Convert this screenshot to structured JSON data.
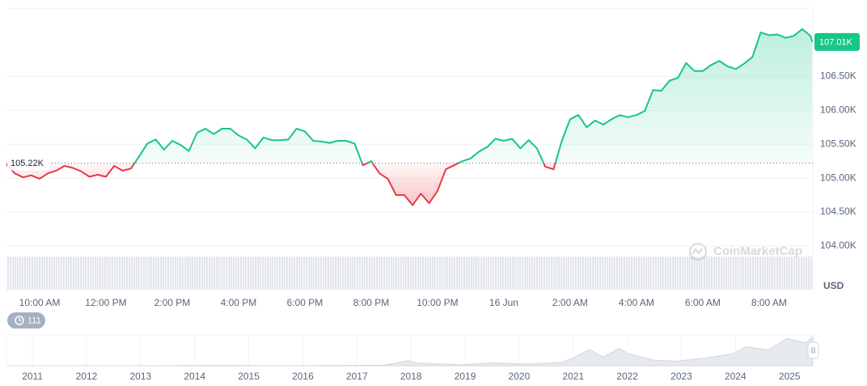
{
  "chart_data": {
    "type": "line",
    "x": [
      9,
      9.25,
      9.5,
      9.75,
      10,
      10.25,
      10.5,
      10.75,
      11,
      11.25,
      11.5,
      11.75,
      12,
      12.25,
      12.5,
      12.75,
      13,
      13.25,
      13.5,
      13.75,
      14,
      14.25,
      14.5,
      14.75,
      15,
      15.25,
      15.5,
      15.75,
      16,
      16.25,
      16.5,
      16.75,
      17,
      17.25,
      17.5,
      17.75,
      18,
      18.25,
      18.5,
      18.75,
      19,
      19.25,
      19.5,
      19.75,
      20,
      20.25,
      20.5,
      20.75,
      21,
      21.25,
      21.5,
      21.75,
      22,
      22.25,
      22.5,
      22.75,
      23,
      23.25,
      23.5,
      23.75,
      24,
      24.25,
      24.5,
      24.75,
      25,
      25.25,
      25.5,
      25.75,
      26,
      26.25,
      26.5,
      26.75,
      27,
      27.25,
      27.5,
      27.75,
      28,
      28.25,
      28.5,
      28.75,
      29,
      29.25,
      29.5,
      29.75,
      30,
      30.25,
      30.5,
      30.75,
      31,
      31.25,
      31.5,
      31.75,
      32,
      32.25,
      32.5,
      32.75,
      33,
      33.25,
      33.3
    ],
    "values": [
      105200,
      105070,
      105010,
      105040,
      104990,
      105070,
      105110,
      105180,
      105150,
      105100,
      105020,
      105050,
      105020,
      105180,
      105110,
      105140,
      105320,
      105510,
      105570,
      105420,
      105550,
      105490,
      105400,
      105670,
      105730,
      105650,
      105730,
      105730,
      105630,
      105570,
      105440,
      105600,
      105560,
      105560,
      105570,
      105730,
      105690,
      105550,
      105540,
      105520,
      105550,
      105550,
      105510,
      105190,
      105250,
      105070,
      104990,
      104750,
      104750,
      104600,
      104770,
      104630,
      104810,
      105130,
      105190,
      105250,
      105290,
      105390,
      105460,
      105580,
      105550,
      105580,
      105440,
      105560,
      105440,
      105170,
      105130,
      105550,
      105870,
      105930,
      105750,
      105850,
      105790,
      105870,
      105930,
      105900,
      105930,
      105990,
      106300,
      106290,
      106440,
      106480,
      106700,
      106580,
      106580,
      106670,
      106730,
      106650,
      106610,
      106690,
      106790,
      107150,
      107110,
      107120,
      107070,
      107100,
      107200,
      107100,
      107010
    ],
    "colors": {
      "above": "#16c784",
      "below": "#ea3943"
    },
    "baseline": {
      "value": 105220,
      "label": "105.22K"
    },
    "last_price": {
      "value": 107010,
      "label": "107.01K"
    },
    "xlim": [
      9.0,
      33.32
    ],
    "ylim": [
      103400,
      107510
    ],
    "xticks": [
      {
        "value": 10,
        "label": "10:00 AM"
      },
      {
        "value": 12,
        "label": "12:00 PM"
      },
      {
        "value": 14,
        "label": "2:00 PM"
      },
      {
        "value": 16,
        "label": "4:00 PM"
      },
      {
        "value": 18,
        "label": "6:00 PM"
      },
      {
        "value": 20,
        "label": "8:00 PM"
      },
      {
        "value": 22,
        "label": "10:00 PM"
      },
      {
        "value": 24,
        "label": "16 Jun"
      },
      {
        "value": 26,
        "label": "2:00 AM"
      },
      {
        "value": 28,
        "label": "4:00 AM"
      },
      {
        "value": 30,
        "label": "6:00 AM"
      },
      {
        "value": 32,
        "label": "8:00 AM"
      }
    ],
    "yticks": [
      {
        "value": 104000,
        "label": "104.00K"
      },
      {
        "value": 104500,
        "label": "104.50K"
      },
      {
        "value": 105000,
        "label": "105.00K"
      },
      {
        "value": 105500,
        "label": "105.50K"
      },
      {
        "value": 106000,
        "label": "106.00K"
      },
      {
        "value": 106500,
        "label": "106.50K"
      }
    ],
    "grid": true,
    "y_axis_unit": "USD",
    "watermark": "CoinMarketCap",
    "badge": "111",
    "navigator": {
      "xlim": [
        2010.52,
        2025.43
      ],
      "ylim": [
        0,
        110000
      ],
      "xticks": [
        2011,
        2012,
        2013,
        2014,
        2015,
        2016,
        2017,
        2018,
        2019,
        2020,
        2021,
        2022,
        2023,
        2024,
        2025
      ],
      "x": [
        2010.52,
        2013.0,
        2013.9,
        2014.5,
        2015.5,
        2016.5,
        2017.5,
        2017.96,
        2018.1,
        2018.5,
        2018.95,
        2019.5,
        2020.2,
        2020.8,
        2021.0,
        2021.3,
        2021.55,
        2021.85,
        2022.0,
        2022.5,
        2022.9,
        2023.5,
        2023.95,
        2024.2,
        2024.6,
        2024.95,
        2025.3,
        2025.43
      ],
      "values": [
        0,
        100,
        1000,
        600,
        250,
        650,
        2500,
        19000,
        10000,
        7000,
        3700,
        11000,
        6000,
        13000,
        29000,
        60000,
        32000,
        64000,
        47000,
        20000,
        16500,
        30000,
        44000,
        70000,
        58000,
        100000,
        84000,
        107000
      ]
    }
  }
}
